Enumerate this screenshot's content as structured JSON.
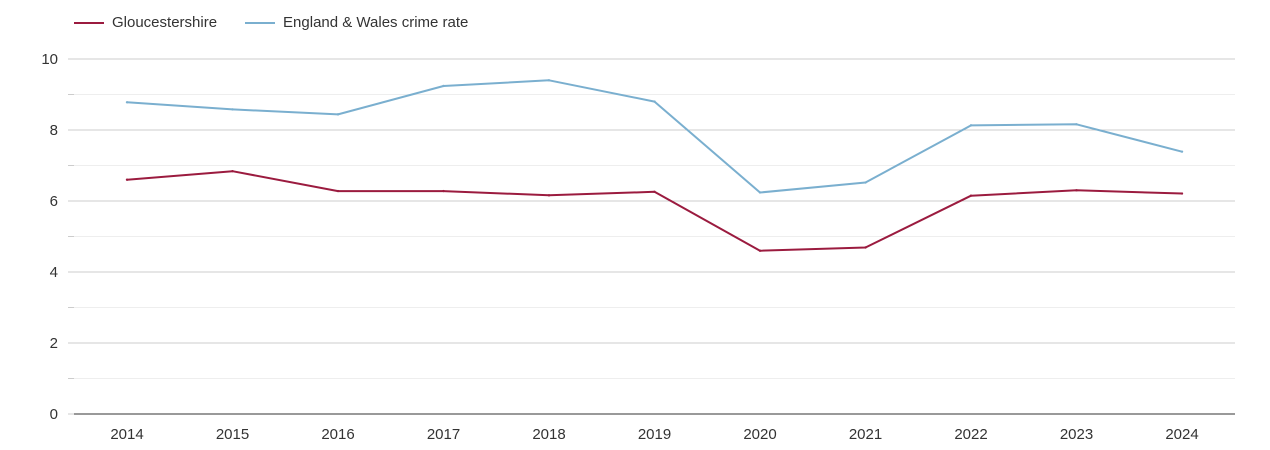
{
  "chart_data": {
    "type": "line",
    "title": "",
    "xlabel": "",
    "ylabel": "",
    "categories": [
      "2014",
      "2015",
      "2016",
      "2017",
      "2018",
      "2019",
      "2020",
      "2021",
      "2022",
      "2023",
      "2024"
    ],
    "ylim": [
      0,
      10
    ],
    "yticks": [
      0,
      2,
      4,
      6,
      8,
      10
    ],
    "grid": true,
    "legend_position": "top-left",
    "series": [
      {
        "name": "Gloucestershire",
        "color": "#9b1b3f",
        "values": [
          6.6,
          6.84,
          6.28,
          6.28,
          6.16,
          6.26,
          4.6,
          4.69,
          6.15,
          6.3,
          6.21
        ]
      },
      {
        "name": "England & Wales crime rate",
        "color": "#7aafcf",
        "values": [
          8.78,
          8.58,
          8.44,
          9.24,
          9.4,
          8.8,
          6.24,
          6.52,
          8.13,
          8.16,
          7.39
        ]
      }
    ]
  }
}
